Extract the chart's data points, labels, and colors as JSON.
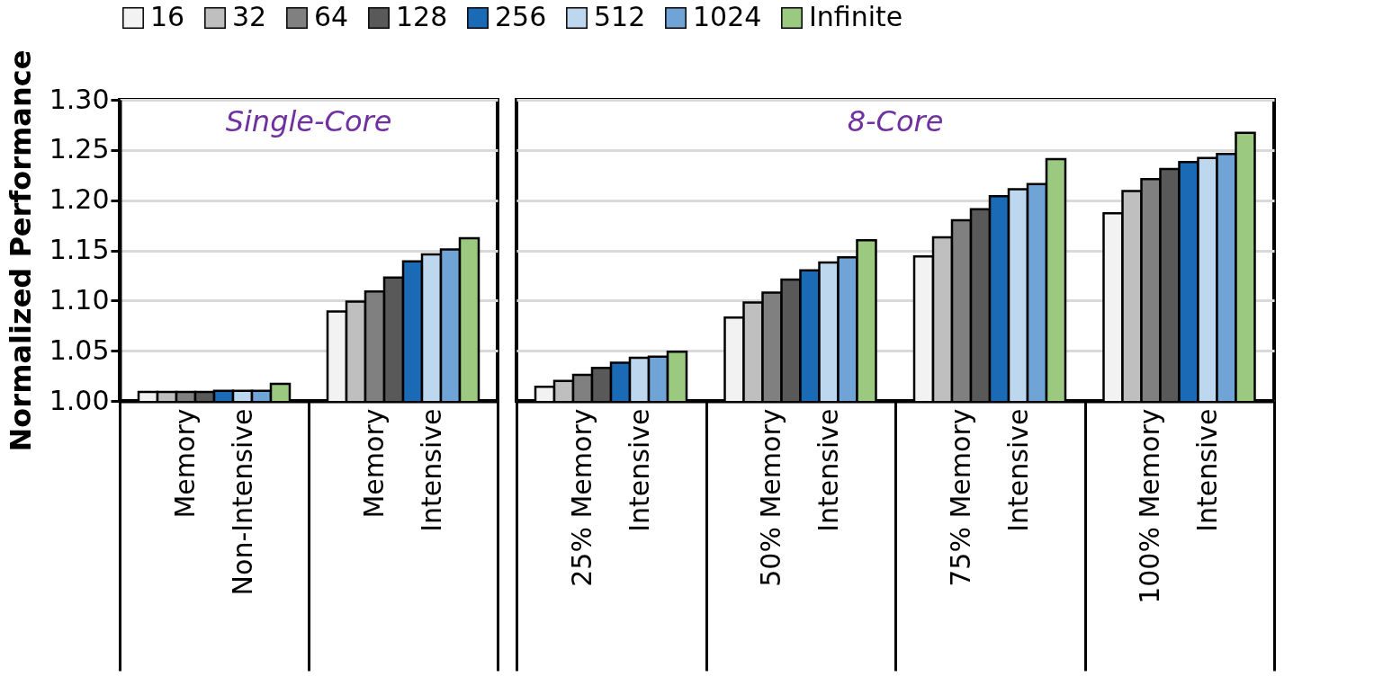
{
  "chart_data": [
    {
      "type": "bar",
      "title": "Single-Core",
      "ylabel": "Normalized Performance",
      "categories": [
        "Memory Non-Intensive",
        "Memory Intensive"
      ],
      "series": [
        {
          "name": "16",
          "color": "#f2f2f2",
          "values": [
            1.009,
            1.089
          ]
        },
        {
          "name": "32",
          "color": "#bfbfbf",
          "values": [
            1.009,
            1.099
          ]
        },
        {
          "name": "64",
          "color": "#808080",
          "values": [
            1.009,
            1.109
          ]
        },
        {
          "name": "128",
          "color": "#595959",
          "values": [
            1.009,
            1.123
          ]
        },
        {
          "name": "256",
          "color": "#1b6ab5",
          "values": [
            1.01,
            1.139
          ]
        },
        {
          "name": "512",
          "color": "#bdd7ee",
          "values": [
            1.01,
            1.146
          ]
        },
        {
          "name": "1024",
          "color": "#70a3d6",
          "values": [
            1.01,
            1.151
          ]
        },
        {
          "name": "Infinite",
          "color": "#9bc97f",
          "values": [
            1.017,
            1.162
          ]
        }
      ],
      "ylim": [
        1.0,
        1.3
      ],
      "yticks": [
        {
          "value": 1.0,
          "label": "1.00"
        },
        {
          "value": 1.05,
          "label": "1.05"
        },
        {
          "value": 1.1,
          "label": "1.10"
        },
        {
          "value": 1.15,
          "label": "1.15"
        },
        {
          "value": 1.2,
          "label": "1.20"
        },
        {
          "value": 1.25,
          "label": "1.25"
        },
        {
          "value": 1.3,
          "label": "1.30"
        }
      ],
      "grid": "y",
      "legend": "top"
    },
    {
      "type": "bar",
      "title": "8-Core",
      "categories": [
        "25% Memory Intensive",
        "50% Memory Intensive",
        "75% Memory Intensive",
        "100% Memory Intensive"
      ],
      "series": [
        {
          "name": "16",
          "color": "#f2f2f2",
          "values": [
            1.014,
            1.083,
            1.144,
            1.187
          ]
        },
        {
          "name": "32",
          "color": "#bfbfbf",
          "values": [
            1.02,
            1.098,
            1.163,
            1.209
          ]
        },
        {
          "name": "64",
          "color": "#808080",
          "values": [
            1.026,
            1.108,
            1.18,
            1.221
          ]
        },
        {
          "name": "128",
          "color": "#595959",
          "values": [
            1.033,
            1.121,
            1.191,
            1.231
          ]
        },
        {
          "name": "256",
          "color": "#1b6ab5",
          "values": [
            1.038,
            1.13,
            1.204,
            1.238
          ]
        },
        {
          "name": "512",
          "color": "#bdd7ee",
          "values": [
            1.043,
            1.138,
            1.211,
            1.242
          ]
        },
        {
          "name": "1024",
          "color": "#70a3d6",
          "values": [
            1.044,
            1.143,
            1.216,
            1.246
          ]
        },
        {
          "name": "Infinite",
          "color": "#9bc97f",
          "values": [
            1.049,
            1.16,
            1.241,
            1.267
          ]
        }
      ],
      "ylim": [
        1.0,
        1.3
      ],
      "yticks": [
        {
          "value": 1.0,
          "label": null
        },
        {
          "value": 1.05,
          "label": null
        },
        {
          "value": 1.1,
          "label": null
        },
        {
          "value": 1.15,
          "label": null
        },
        {
          "value": 1.2,
          "label": null
        },
        {
          "value": 1.25,
          "label": null
        },
        {
          "value": 1.3,
          "label": null
        }
      ],
      "grid": "y",
      "legend": "top",
      "tick_labels": "x"
    }
  ]
}
